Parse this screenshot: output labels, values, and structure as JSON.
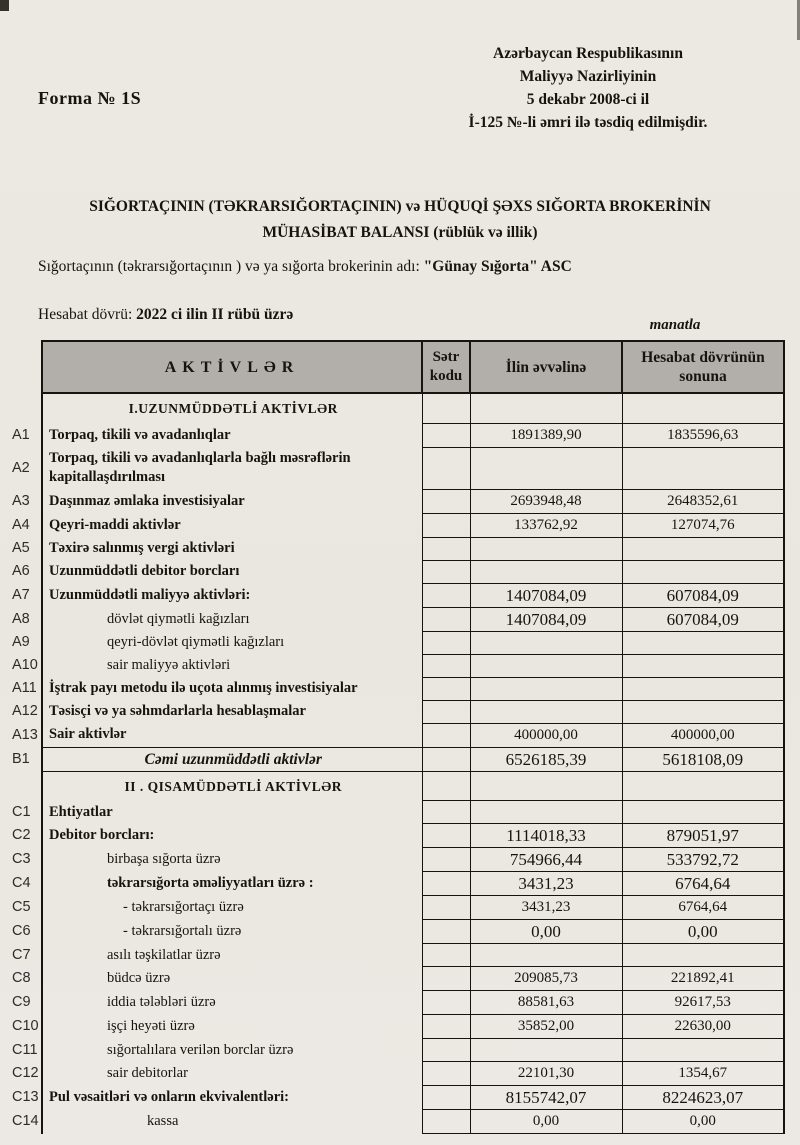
{
  "page": {
    "form_label": "Forma № 1S",
    "approval": [
      "Azərbaycan Respublikasının",
      "Maliyyə Nazirliyinin",
      "5 dekabr 2008-ci il",
      "İ-125 №-li əmri ilə təsdiq edilmişdir."
    ],
    "title_line1": "SIĞORTAÇININ (TƏKRARSIĞORTAÇININ) və HÜQUQİ ŞƏXS SIĞORTA BROKERİNİN",
    "title_line2": "MÜHASİBAT BALANSI (rüblük və illik)",
    "insurer_label": "Sığortaçının (təkrarsığortaçının ) və ya sığorta brokerinin adı: ",
    "insurer_name": "\"Günay Sığorta\" ASC",
    "period_label": "Hesabat dövrü: ",
    "period_value": "2022 ci ilin II rübü üzrə",
    "currency_note": "manatla"
  },
  "table": {
    "headers": {
      "assets": "AKTİVLƏR",
      "row_code": "Sətr kodu",
      "col_begin": "İlin əvvəlinə",
      "col_end": "Hesabat dövrünün sonuna"
    },
    "rows": [
      {
        "code": "",
        "label": "I.UZUNMÜDDƏTLİ AKTİVLƏR",
        "begin": "",
        "end": "",
        "style": "section"
      },
      {
        "code": "A1",
        "label": "Torpaq, tikili və avadanlıqlar",
        "begin": "1891389,90",
        "end": "1835596,63",
        "style": "group"
      },
      {
        "code": "A2",
        "label": "Torpaq, tikili və avadanlıqlarla bağlı məsrəflərin kapitallaşdırılması",
        "begin": "",
        "end": "",
        "style": "group"
      },
      {
        "code": "A3",
        "label": "Daşınmaz əmlaka investisiyalar",
        "begin": "2693948,48",
        "end": "2648352,61",
        "style": "group"
      },
      {
        "code": "A4",
        "label": "Qeyri-maddi aktivlər",
        "begin": "133762,92",
        "end": "127074,76",
        "style": "group"
      },
      {
        "code": "A5",
        "label": "Təxirə salınmış vergi aktivləri",
        "begin": "",
        "end": "",
        "style": "group"
      },
      {
        "code": "A6",
        "label": "Uzunmüddətli debitor borcları",
        "begin": "",
        "end": "",
        "style": "group"
      },
      {
        "code": "A7",
        "label": "Uzunmüddətli maliyyə aktivləri:",
        "begin": "1407084,09",
        "end": "607084,09",
        "style": "group",
        "emph": true
      },
      {
        "code": "A8",
        "label": "dövlət qiymətli kağızları",
        "begin": "1407084,09",
        "end": "607084,09",
        "style": "item",
        "emph": true
      },
      {
        "code": "A9",
        "label": "qeyri-dövlət qiymətli kağızları",
        "begin": "",
        "end": "",
        "style": "item"
      },
      {
        "code": "A10",
        "label": "sair maliyyə aktivləri",
        "begin": "",
        "end": "",
        "style": "item"
      },
      {
        "code": "A11",
        "label": "İştrak payı metodu ilə uçota alınmış investisiyalar",
        "begin": "",
        "end": "",
        "style": "group"
      },
      {
        "code": "A12",
        "label": "Təsisçi və ya səhmdarlarla hesablaşmalar",
        "begin": "",
        "end": "",
        "style": "group"
      },
      {
        "code": "A13",
        "label": "Sair aktivlər",
        "begin": "400000,00",
        "end": "400000,00",
        "style": "group"
      },
      {
        "code": "B1",
        "label": "Cəmi uzunmüddətli aktivlər",
        "begin": "6526185,39",
        "end": "5618108,09",
        "style": "total",
        "emph": true
      },
      {
        "code": "",
        "label": "II . QISAMÜDDƏTLİ AKTİVLƏR",
        "begin": "",
        "end": "",
        "style": "section"
      },
      {
        "code": "C1",
        "label": "Ehtiyatlar",
        "begin": "",
        "end": "",
        "style": "group"
      },
      {
        "code": "C2",
        "label": "Debitor borcları:",
        "begin": "1114018,33",
        "end": "879051,97",
        "style": "group",
        "emph": true
      },
      {
        "code": "C3",
        "label": "birbaşa sığorta üzrə",
        "begin": "754966,44",
        "end": "533792,72",
        "style": "item",
        "emph": true
      },
      {
        "code": "C4",
        "label": "təkrarsığorta əməliyyatları üzrə :",
        "begin": "3431,23",
        "end": "6764,64",
        "style": "groupsub",
        "emph": true
      },
      {
        "code": "C5",
        "label": "- təkrarsığortaçı üzrə",
        "begin": "3431,23",
        "end": "6764,64",
        "style": "dash"
      },
      {
        "code": "C6",
        "label": "- təkrarsığortalı üzrə",
        "begin": "0,00",
        "end": "0,00",
        "style": "dash",
        "emph": true
      },
      {
        "code": "C7",
        "label": "asılı təşkilatlar üzrə",
        "begin": "",
        "end": "",
        "style": "item"
      },
      {
        "code": "C8",
        "label": "büdcə üzrə",
        "begin": "209085,73",
        "end": "221892,41",
        "style": "item"
      },
      {
        "code": "C9",
        "label": "iddia tələbləri üzrə",
        "begin": "88581,63",
        "end": "92617,53",
        "style": "item"
      },
      {
        "code": "C10",
        "label": "işçi heyəti üzrə",
        "begin": "35852,00",
        "end": "22630,00",
        "style": "item"
      },
      {
        "code": "C11",
        "label": "sığortalılara verilən borclar üzrə",
        "begin": "",
        "end": "",
        "style": "item"
      },
      {
        "code": "C12",
        "label": "sair debitorlar",
        "begin": "22101,30",
        "end": "1354,67",
        "style": "item"
      },
      {
        "code": "C13",
        "label": "Pul vəsaitləri və onların ekvivalentləri:",
        "begin": "8155742,07",
        "end": "8224623,07",
        "style": "group",
        "emph": true
      },
      {
        "code": "C14",
        "label": "kassa",
        "begin": "0,00",
        "end": "0,00",
        "style": "item2"
      }
    ]
  },
  "colors": {
    "page_bg": "#ebe8e2",
    "header_bg": "#b2afab",
    "border": "#17140f",
    "text": "#17140f"
  }
}
